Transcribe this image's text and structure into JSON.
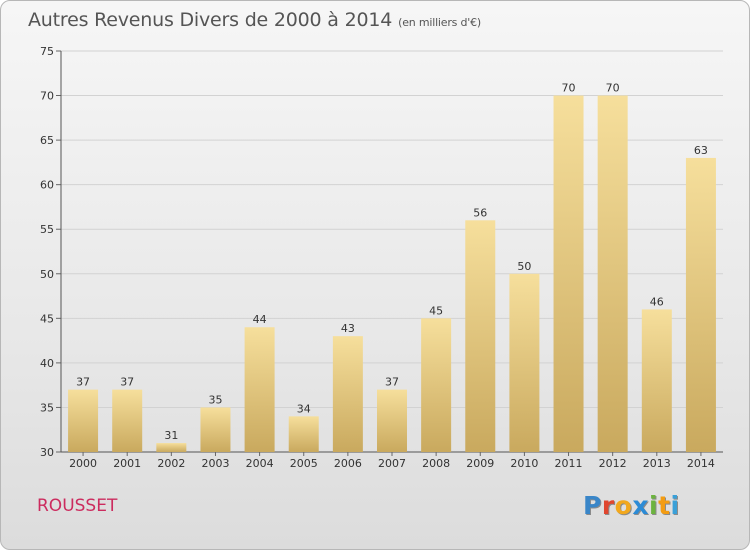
{
  "header": {
    "title": "Autres Revenus Divers de 2000 à 2014",
    "unit": "(en milliers d'€)"
  },
  "footer": {
    "town": "ROUSSET",
    "logo_letters": [
      "P",
      "r",
      "o",
      "x",
      "i",
      "t",
      "i"
    ],
    "logo_colors": [
      "#3a86c8",
      "#e0462f",
      "#f2a81d",
      "#2b8bd6",
      "#6cb33f",
      "#f39c12",
      "#3aa0d8"
    ]
  },
  "chart_data": {
    "type": "bar",
    "title": "Autres Revenus Divers de 2000 à 2014",
    "xlabel": "",
    "ylabel": "",
    "categories": [
      "2000",
      "2001",
      "2002",
      "2003",
      "2004",
      "2005",
      "2006",
      "2007",
      "2008",
      "2009",
      "2010",
      "2011",
      "2012",
      "2013",
      "2014"
    ],
    "values": [
      37,
      37,
      31,
      35,
      44,
      34,
      43,
      37,
      45,
      56,
      50,
      70,
      70,
      46,
      63
    ],
    "ylim": [
      30,
      75
    ],
    "yticks": [
      30,
      35,
      40,
      45,
      50,
      55,
      60,
      65,
      70,
      75
    ],
    "bar_color_top": "#f6df9c",
    "bar_color_bottom": "#c9a95e",
    "grid": true
  }
}
